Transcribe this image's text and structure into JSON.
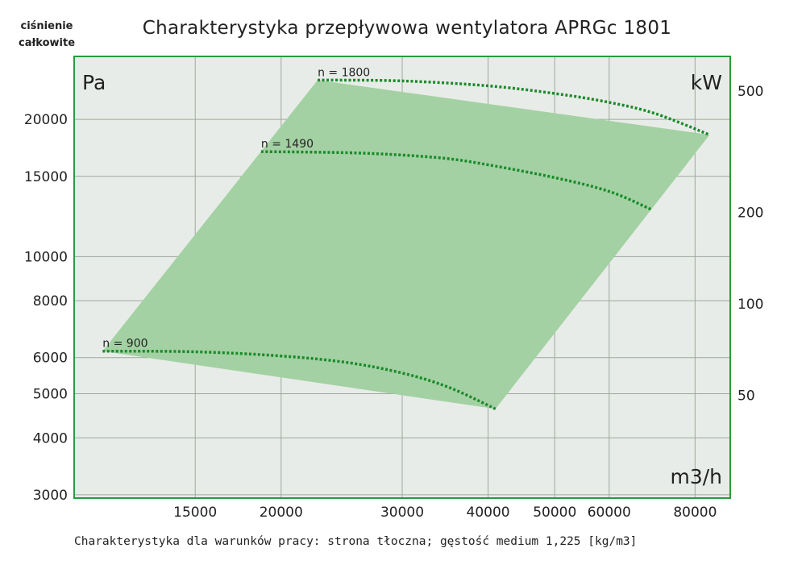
{
  "chart_data": {
    "type": "line",
    "title": "Charakterystyka przepływowa wentylatora APRGc 1801",
    "corner_label_line1": "ciśnienie",
    "corner_label_line2": "całkowite",
    "y_unit_label": "Pa",
    "y2_unit_label": "kW",
    "x_unit_label": "m3/h",
    "footnote": "Charakterystyka dla warunków pracy: strona tłoczna; gęstość medium 1,225 [kg/m3]",
    "x_scale": "log",
    "y_scale": "log",
    "y2_scale": "log",
    "xlim": [
      10000,
      90000
    ],
    "ylim": [
      2950,
      27500
    ],
    "y2lim": [
      23,
      650
    ],
    "x_ticks": [
      15000,
      20000,
      30000,
      40000,
      50000,
      60000,
      80000
    ],
    "x_tick_labels": [
      "15000",
      "20000",
      "30000",
      "40000",
      "50000",
      "60000",
      "80000"
    ],
    "y_ticks": [
      3000,
      4000,
      5000,
      6000,
      8000,
      10000,
      15000,
      20000
    ],
    "y_tick_labels": [
      "3000",
      "4000",
      "5000",
      "6000",
      "8000",
      "10000",
      "15000",
      "20000"
    ],
    "y2_ticks": [
      50,
      100,
      200,
      500
    ],
    "y2_tick_labels": [
      "50",
      "100",
      "200",
      "500"
    ],
    "grid": true,
    "operating_area": [
      [
        11000,
        6200
      ],
      [
        22600,
        24400
      ],
      [
        84000,
        18500
      ],
      [
        41000,
        4630
      ]
    ],
    "series": [
      {
        "name": "n = 1800",
        "x": [
          22600,
          30000,
          40000,
          50000,
          60000,
          70000,
          84000
        ],
        "y": [
          24400,
          24300,
          23700,
          22800,
          21800,
          20600,
          18500
        ]
      },
      {
        "name": "n = 1490",
        "x": [
          18700,
          25000,
          30000,
          35000,
          40000,
          50000,
          60000,
          69000
        ],
        "y": [
          17000,
          16900,
          16700,
          16400,
          15900,
          14900,
          13900,
          12700
        ]
      },
      {
        "name": "n = 900",
        "x": [
          11000,
          15000,
          20000,
          25000,
          30000,
          35000,
          41000
        ],
        "y": [
          6200,
          6180,
          6050,
          5850,
          5550,
          5170,
          4630
        ]
      }
    ],
    "colors": {
      "area_fill": "#a3d1a3",
      "curve": "#1a8a2a",
      "plot_border": "#2c9a3c",
      "plot_background": "#e8ece8",
      "grid": "#9ea89e"
    }
  }
}
